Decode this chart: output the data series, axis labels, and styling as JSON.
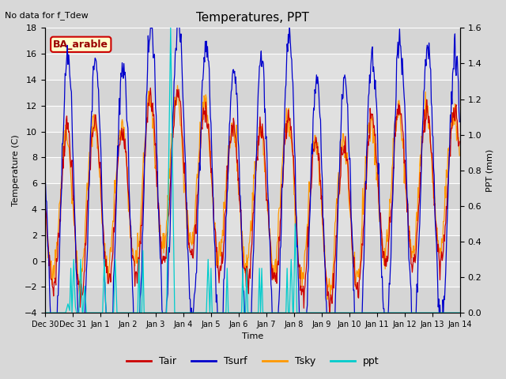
{
  "title": "Temperatures, PPT",
  "subtitle": "No data for f_Tdew",
  "box_label": "BA_arable",
  "xlabel": "Time",
  "ylabel_left": "Temperature (C)",
  "ylabel_right": "PPT (mm)",
  "ylim_left": [
    -4,
    18
  ],
  "ylim_right": [
    0.0,
    1.6
  ],
  "yticks_left": [
    -4,
    -2,
    0,
    2,
    4,
    6,
    8,
    10,
    12,
    14,
    16,
    18
  ],
  "yticks_right": [
    0.0,
    0.2,
    0.4,
    0.6,
    0.8,
    1.0,
    1.2,
    1.4,
    1.6
  ],
  "xtick_labels": [
    "Dec 30",
    "Dec 31",
    "Jan 1",
    "Jan 2",
    "Jan 3",
    "Jan 4",
    "Jan 5",
    "Jan 6",
    "Jan 7",
    "Jan 8",
    "Jan 9",
    "Jan 10",
    "Jan 11",
    "Jan 12",
    "Jan 13",
    "Jan 14"
  ],
  "colors": {
    "Tair": "#cc0000",
    "Tsurf": "#0000cc",
    "Tsky": "#ff9900",
    "ppt": "#00cccc",
    "background": "#e0e0e0",
    "grid": "#ffffff"
  },
  "figsize": [
    6.4,
    4.8
  ],
  "dpi": 100,
  "title_fontsize": 11,
  "label_fontsize": 8,
  "tick_fontsize": 8
}
